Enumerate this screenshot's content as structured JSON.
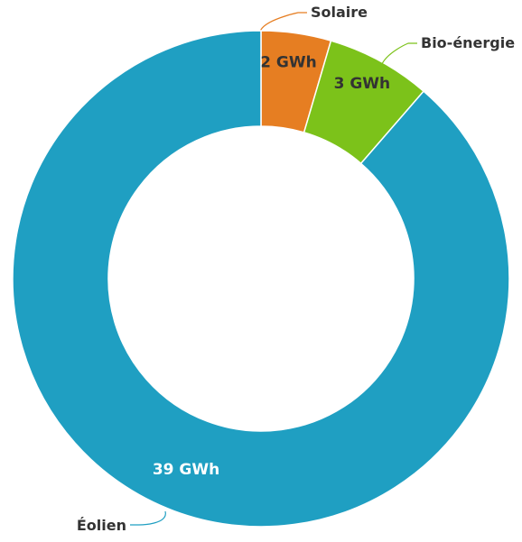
{
  "chart_data": {
    "type": "pie",
    "variant": "donut",
    "title": "",
    "unit": "GWh",
    "slices": [
      {
        "label": "Solaire",
        "value": 2,
        "value_label": "2 GWh",
        "color": "#e67e22",
        "label_text_color": "#333333"
      },
      {
        "label": "Bio-énergie",
        "value": 3,
        "value_label": "3 GWh",
        "color": "#7cc21a",
        "label_text_color": "#333333"
      },
      {
        "label": "Éolien",
        "value": 39,
        "value_label": "39 GWh",
        "color": "#1f9fc2",
        "label_text_color": "#ffffff"
      }
    ]
  }
}
